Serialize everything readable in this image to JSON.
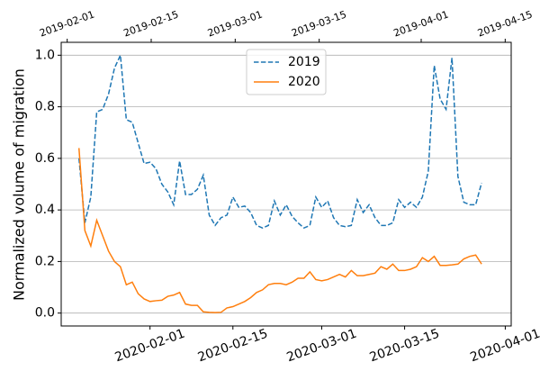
{
  "chart_data": {
    "type": "line",
    "y_label": "Normalized volume of migration",
    "x": [
      "2020-01-20",
      "2020-01-21",
      "2020-01-22",
      "2020-01-23",
      "2020-01-24",
      "2020-01-25",
      "2020-01-26",
      "2020-01-27",
      "2020-01-28",
      "2020-01-29",
      "2020-01-30",
      "2020-01-31",
      "2020-02-01",
      "2020-02-02",
      "2020-02-03",
      "2020-02-04",
      "2020-02-05",
      "2020-02-06",
      "2020-02-07",
      "2020-02-08",
      "2020-02-09",
      "2020-02-10",
      "2020-02-11",
      "2020-02-12",
      "2020-02-13",
      "2020-02-14",
      "2020-02-15",
      "2020-02-16",
      "2020-02-17",
      "2020-02-18",
      "2020-02-19",
      "2020-02-20",
      "2020-02-21",
      "2020-02-22",
      "2020-02-23",
      "2020-02-24",
      "2020-02-25",
      "2020-02-26",
      "2020-02-27",
      "2020-02-28",
      "2020-02-29",
      "2020-03-01",
      "2020-03-02",
      "2020-03-03",
      "2020-03-04",
      "2020-03-05",
      "2020-03-06",
      "2020-03-07",
      "2020-03-08",
      "2020-03-09",
      "2020-03-10",
      "2020-03-11",
      "2020-03-12",
      "2020-03-13",
      "2020-03-14",
      "2020-03-15",
      "2020-03-16",
      "2020-03-17",
      "2020-03-18",
      "2020-03-19",
      "2020-03-20",
      "2020-03-21",
      "2020-03-22",
      "2020-03-23",
      "2020-03-24",
      "2020-03-25",
      "2020-03-26",
      "2020-03-27",
      "2020-03-28"
    ],
    "series": [
      {
        "name": "2019",
        "color": "#1f77b4",
        "dash": true,
        "values": [
          0.6,
          0.35,
          0.45,
          0.78,
          0.79,
          0.85,
          0.95,
          1.0,
          0.75,
          0.74,
          0.66,
          0.58,
          0.585,
          0.56,
          0.5,
          0.47,
          0.42,
          0.59,
          0.46,
          0.46,
          0.48,
          0.535,
          0.38,
          0.34,
          0.37,
          0.38,
          0.45,
          0.41,
          0.415,
          0.39,
          0.34,
          0.33,
          0.34,
          0.435,
          0.38,
          0.42,
          0.375,
          0.35,
          0.33,
          0.34,
          0.45,
          0.41,
          0.435,
          0.37,
          0.34,
          0.335,
          0.34,
          0.44,
          0.39,
          0.42,
          0.37,
          0.34,
          0.34,
          0.35,
          0.44,
          0.41,
          0.43,
          0.41,
          0.45,
          0.55,
          0.96,
          0.83,
          0.79,
          0.99,
          0.53,
          0.43,
          0.42,
          0.42,
          0.505
        ]
      },
      {
        "name": "2020",
        "color": "#ff7f0e",
        "dash": false,
        "values": [
          0.64,
          0.32,
          0.26,
          0.36,
          0.3,
          0.24,
          0.2,
          0.18,
          0.11,
          0.12,
          0.075,
          0.055,
          0.045,
          0.048,
          0.05,
          0.065,
          0.07,
          0.08,
          0.035,
          0.03,
          0.03,
          0.005,
          0.003,
          0.002,
          0.003,
          0.02,
          0.025,
          0.035,
          0.045,
          0.06,
          0.08,
          0.09,
          0.11,
          0.115,
          0.115,
          0.11,
          0.12,
          0.135,
          0.135,
          0.16,
          0.13,
          0.125,
          0.13,
          0.14,
          0.15,
          0.14,
          0.165,
          0.145,
          0.145,
          0.15,
          0.155,
          0.18,
          0.17,
          0.19,
          0.165,
          0.165,
          0.17,
          0.18,
          0.215,
          0.2,
          0.22,
          0.185,
          0.185,
          0.187,
          0.19,
          0.21,
          0.22,
          0.225,
          0.19
        ]
      }
    ],
    "xlim": [
      "2020-01-17",
      "2020-04-02"
    ],
    "xticks": [
      "2020-02-01",
      "2020-02-15",
      "2020-03-01",
      "2020-03-15",
      "2020-04-01"
    ],
    "x2lim": [
      "2019-01-31",
      "2019-04-16"
    ],
    "x2ticks": [
      "2019-02-01",
      "2019-02-15",
      "2019-03-01",
      "2019-03-15",
      "2019-04-01",
      "2019-04-15"
    ],
    "ylim": [
      -0.05,
      1.05
    ],
    "yticks": [
      {
        "value": 0,
        "label": "0.0"
      },
      0.2,
      0.4,
      0.6,
      0.8,
      {
        "value": 1,
        "label": "1.0"
      }
    ],
    "grid": "y",
    "legend": "upper center"
  }
}
